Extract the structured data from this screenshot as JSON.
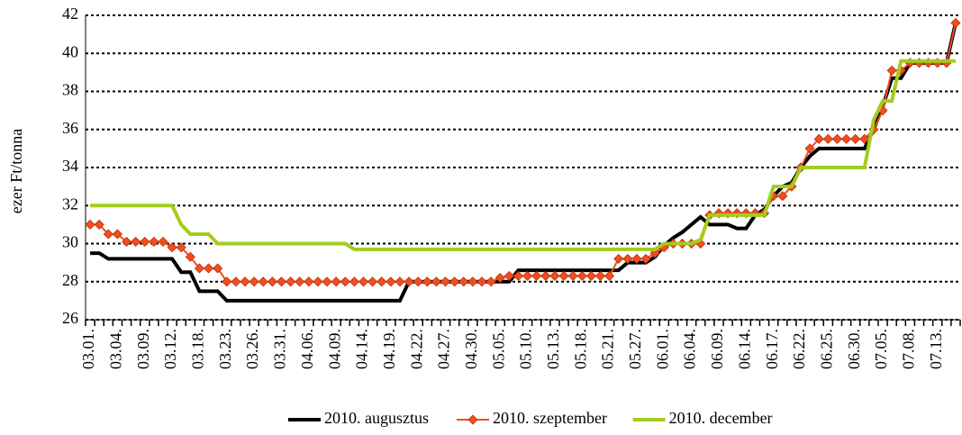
{
  "chart_data": {
    "type": "line",
    "ylabel": "ezer Ft/tonna",
    "categories": [
      "03.01.",
      null,
      null,
      "03.04.",
      null,
      null,
      "03.09.",
      null,
      null,
      "03.12.",
      null,
      null,
      "03.18.",
      null,
      null,
      "03.23.",
      null,
      null,
      "03.26.",
      null,
      null,
      "03.31.",
      null,
      null,
      "04.06.",
      null,
      null,
      "04.09.",
      null,
      null,
      "04.14.",
      null,
      null,
      "04.19.",
      null,
      null,
      "04.22.",
      null,
      null,
      "04.27.",
      null,
      null,
      "04.30.",
      null,
      null,
      "05.05.",
      null,
      null,
      "05.10.",
      null,
      null,
      "05.13.",
      null,
      null,
      "05.18.",
      null,
      null,
      "05.21.",
      null,
      null,
      "05.27.",
      null,
      null,
      "06.01.",
      null,
      null,
      "06.04.",
      null,
      null,
      "06.09.",
      null,
      null,
      "06.14.",
      null,
      null,
      "06.17.",
      null,
      null,
      "06.22.",
      null,
      null,
      "06.25.",
      null,
      null,
      "06.30.",
      null,
      null,
      "07.05.",
      null,
      null,
      "07.08.",
      null,
      null,
      "07.13.",
      null,
      null
    ],
    "series": [
      {
        "name": "2010. augusztus",
        "color": "#000000",
        "marker": "none",
        "values": [
          29.5,
          29.5,
          29.2,
          29.2,
          29.2,
          29.2,
          29.2,
          29.2,
          29.2,
          29.2,
          28.5,
          28.5,
          27.5,
          27.5,
          27.5,
          27,
          27,
          27,
          27,
          27,
          27,
          27,
          27,
          27,
          27,
          27,
          27,
          27,
          27,
          27,
          27,
          27,
          27,
          27,
          27,
          28,
          28,
          28,
          28,
          28,
          28,
          28,
          28,
          28,
          28,
          28,
          28,
          28.6,
          28.6,
          28.6,
          28.6,
          28.6,
          28.6,
          28.6,
          28.6,
          28.6,
          28.6,
          28.6,
          28.6,
          29,
          29,
          29,
          29.3,
          29.9,
          30.3,
          30.6,
          31,
          31.4,
          31,
          31,
          31,
          30.8,
          30.8,
          31.5,
          31.8,
          32.5,
          33,
          33.2,
          34,
          34.6,
          35,
          35,
          35,
          35,
          35,
          35,
          36,
          37.2,
          38.7,
          38.7,
          39.5,
          39.5,
          39.5,
          39.5,
          39.5,
          41.6
        ]
      },
      {
        "name": "2010. szeptember",
        "color": "#f04e1e",
        "marker": "diamond",
        "values": [
          31,
          31,
          30.5,
          30.5,
          30.1,
          30.1,
          30.1,
          30.1,
          30.1,
          29.8,
          29.8,
          29.3,
          28.7,
          28.7,
          28.7,
          28,
          28,
          28,
          28,
          28,
          28,
          28,
          28,
          28,
          28,
          28,
          28,
          28,
          28,
          28,
          28,
          28,
          28,
          28,
          28,
          28,
          28,
          28,
          28,
          28,
          28,
          28,
          28,
          28,
          28,
          28.2,
          28.3,
          28.3,
          28.3,
          28.3,
          28.3,
          28.3,
          28.3,
          28.3,
          28.3,
          28.3,
          28.3,
          28.3,
          29.2,
          29.2,
          29.2,
          29.2,
          29.5,
          29.8,
          30,
          30,
          30,
          30,
          31.5,
          31.6,
          31.6,
          31.6,
          31.6,
          31.6,
          31.6,
          32.5,
          32.5,
          33,
          34,
          35,
          35.5,
          35.5,
          35.5,
          35.5,
          35.5,
          35.5,
          36,
          37,
          39.1,
          39.1,
          39.5,
          39.5,
          39.5,
          39.5,
          39.5,
          41.6
        ]
      },
      {
        "name": "2010. december",
        "color": "#a2cd1e",
        "marker": "none",
        "values": [
          32,
          32,
          32,
          32,
          32,
          32,
          32,
          32,
          32,
          32,
          31,
          30.5,
          30.5,
          30.5,
          30,
          30,
          30,
          30,
          30,
          30,
          30,
          30,
          30,
          30,
          30,
          30,
          30,
          30,
          30,
          29.7,
          29.7,
          29.7,
          29.7,
          29.7,
          29.7,
          29.7,
          29.7,
          29.7,
          29.7,
          29.7,
          29.7,
          29.7,
          29.7,
          29.7,
          29.7,
          29.7,
          29.7,
          29.7,
          29.7,
          29.7,
          29.7,
          29.7,
          29.7,
          29.7,
          29.7,
          29.7,
          29.7,
          29.7,
          29.7,
          29.7,
          29.7,
          29.7,
          29.7,
          30,
          30,
          30,
          30,
          30.2,
          31.5,
          31.5,
          31.5,
          31.5,
          31.5,
          31.5,
          31.5,
          33,
          33,
          33,
          34,
          34,
          34,
          34,
          34,
          34,
          34,
          34,
          36.5,
          37.5,
          37.5,
          39.6,
          39.6,
          39.6,
          39.6,
          39.6,
          39.6,
          39.6
        ]
      }
    ],
    "ylim": [
      26,
      42
    ],
    "yticks": [
      26,
      28,
      30,
      32,
      34,
      36,
      38,
      40,
      42
    ],
    "grid": true,
    "legend": "bottom"
  }
}
